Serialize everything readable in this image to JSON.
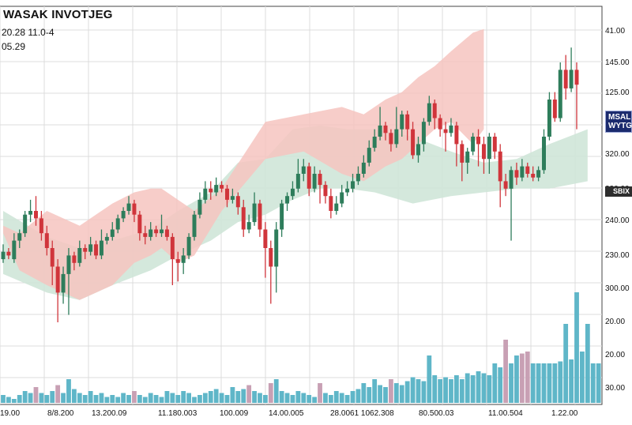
{
  "header": {
    "title": "WASAK INVOTJEG",
    "subtitle_line1": "20.28 11.0-4",
    "subtitle_line2": "05.29"
  },
  "badges": {
    "blue": "MSAL\nWYTG",
    "dark": "SBIX"
  },
  "colors": {
    "up": "#2e7d5b",
    "down": "#d0353b",
    "band_green": "#cfe6d8",
    "band_red": "#f6c4c0",
    "volume_teal": "#5fb6c8",
    "volume_mauve": "#c8a0b4",
    "grid": "#dcdcdc"
  },
  "chart_data": {
    "type": "candlestick",
    "y_axis_labels": [
      "41.00",
      "145.00",
      "125.00",
      "320.00",
      "230.00",
      "240.00",
      "230.00",
      "300.00",
      "20.00",
      "20.00",
      "30.00"
    ],
    "x_axis_labels": [
      "19.00",
      "8/8.200",
      "13.200.09",
      "11.180.003",
      "100.009",
      "14.00.005",
      "28.0061 1062.308",
      "80.500.03",
      "11.00.504",
      "1.22.00"
    ],
    "grid": true,
    "ylim": [
      0,
      100
    ],
    "candles": [
      {
        "o": 37,
        "c": 39,
        "h": 41,
        "l": 36
      },
      {
        "o": 39,
        "c": 38,
        "h": 40,
        "l": 37
      },
      {
        "o": 37,
        "c": 42,
        "h": 44,
        "l": 36
      },
      {
        "o": 42,
        "c": 44,
        "h": 45,
        "l": 40
      },
      {
        "o": 44,
        "c": 49,
        "h": 50,
        "l": 43
      },
      {
        "o": 49,
        "c": 50,
        "h": 53,
        "l": 47
      },
      {
        "o": 50,
        "c": 48,
        "h": 54,
        "l": 46
      },
      {
        "o": 48,
        "c": 44,
        "h": 50,
        "l": 42
      },
      {
        "o": 44,
        "c": 40,
        "h": 46,
        "l": 38
      },
      {
        "o": 40,
        "c": 35,
        "h": 42,
        "l": 30
      },
      {
        "o": 35,
        "c": 28,
        "h": 37,
        "l": 20
      },
      {
        "o": 28,
        "c": 33,
        "h": 35,
        "l": 25
      },
      {
        "o": 33,
        "c": 38,
        "h": 40,
        "l": 22
      },
      {
        "o": 38,
        "c": 36,
        "h": 39,
        "l": 34
      },
      {
        "o": 36,
        "c": 40,
        "h": 42,
        "l": 35
      },
      {
        "o": 40,
        "c": 39,
        "h": 41,
        "l": 37
      },
      {
        "o": 39,
        "c": 41,
        "h": 43,
        "l": 38
      },
      {
        "o": 41,
        "c": 38,
        "h": 42,
        "l": 37
      },
      {
        "o": 38,
        "c": 42,
        "h": 45,
        "l": 37
      },
      {
        "o": 42,
        "c": 43,
        "h": 44,
        "l": 41
      },
      {
        "o": 43,
        "c": 45,
        "h": 47,
        "l": 42
      },
      {
        "o": 45,
        "c": 48,
        "h": 49,
        "l": 44
      },
      {
        "o": 48,
        "c": 50,
        "h": 51,
        "l": 47
      },
      {
        "o": 50,
        "c": 52,
        "h": 54,
        "l": 49
      },
      {
        "o": 52,
        "c": 49,
        "h": 53,
        "l": 47
      },
      {
        "o": 49,
        "c": 44,
        "h": 50,
        "l": 42
      },
      {
        "o": 44,
        "c": 43,
        "h": 46,
        "l": 41
      },
      {
        "o": 43,
        "c": 45,
        "h": 47,
        "l": 42
      },
      {
        "o": 45,
        "c": 44,
        "h": 46,
        "l": 43
      },
      {
        "o": 44,
        "c": 45,
        "h": 49,
        "l": 43
      },
      {
        "o": 45,
        "c": 43,
        "h": 46,
        "l": 42
      },
      {
        "o": 43,
        "c": 37,
        "h": 44,
        "l": 30
      },
      {
        "o": 37,
        "c": 36,
        "h": 39,
        "l": 31
      },
      {
        "o": 36,
        "c": 38,
        "h": 40,
        "l": 33
      },
      {
        "o": 38,
        "c": 43,
        "h": 44,
        "l": 37
      },
      {
        "o": 43,
        "c": 49,
        "h": 50,
        "l": 42
      },
      {
        "o": 49,
        "c": 53,
        "h": 55,
        "l": 48
      },
      {
        "o": 53,
        "c": 56,
        "h": 58,
        "l": 52
      },
      {
        "o": 56,
        "c": 55,
        "h": 58,
        "l": 53
      },
      {
        "o": 55,
        "c": 57,
        "h": 59,
        "l": 54
      },
      {
        "o": 57,
        "c": 56,
        "h": 58,
        "l": 55
      },
      {
        "o": 56,
        "c": 53,
        "h": 57,
        "l": 51
      },
      {
        "o": 53,
        "c": 54,
        "h": 56,
        "l": 52
      },
      {
        "o": 54,
        "c": 51,
        "h": 55,
        "l": 49
      },
      {
        "o": 51,
        "c": 45,
        "h": 53,
        "l": 43
      },
      {
        "o": 45,
        "c": 47,
        "h": 49,
        "l": 44
      },
      {
        "o": 47,
        "c": 52,
        "h": 55,
        "l": 46
      },
      {
        "o": 52,
        "c": 45,
        "h": 53,
        "l": 43
      },
      {
        "o": 45,
        "c": 40,
        "h": 47,
        "l": 32
      },
      {
        "o": 40,
        "c": 35,
        "h": 42,
        "l": 25
      },
      {
        "o": 35,
        "c": 45,
        "h": 47,
        "l": 28
      },
      {
        "o": 45,
        "c": 52,
        "h": 53,
        "l": 43
      },
      {
        "o": 52,
        "c": 54,
        "h": 55,
        "l": 50
      },
      {
        "o": 54,
        "c": 56,
        "h": 58,
        "l": 53
      },
      {
        "o": 56,
        "c": 60,
        "h": 64,
        "l": 55
      },
      {
        "o": 60,
        "c": 62,
        "h": 64,
        "l": 58
      },
      {
        "o": 62,
        "c": 56,
        "h": 63,
        "l": 54
      },
      {
        "o": 56,
        "c": 60,
        "h": 62,
        "l": 55
      },
      {
        "o": 60,
        "c": 57,
        "h": 61,
        "l": 52
      },
      {
        "o": 57,
        "c": 54,
        "h": 58,
        "l": 52
      },
      {
        "o": 54,
        "c": 50,
        "h": 56,
        "l": 48
      },
      {
        "o": 50,
        "c": 52,
        "h": 54,
        "l": 49
      },
      {
        "o": 52,
        "c": 55,
        "h": 57,
        "l": 51
      },
      {
        "o": 55,
        "c": 56,
        "h": 58,
        "l": 54
      },
      {
        "o": 56,
        "c": 58,
        "h": 60,
        "l": 55
      },
      {
        "o": 58,
        "c": 60,
        "h": 62,
        "l": 57
      },
      {
        "o": 60,
        "c": 63,
        "h": 65,
        "l": 59
      },
      {
        "o": 63,
        "c": 67,
        "h": 69,
        "l": 62
      },
      {
        "o": 67,
        "c": 70,
        "h": 72,
        "l": 66
      },
      {
        "o": 70,
        "c": 73,
        "h": 78,
        "l": 69
      },
      {
        "o": 73,
        "c": 71,
        "h": 74,
        "l": 69
      },
      {
        "o": 71,
        "c": 68,
        "h": 72,
        "l": 66
      },
      {
        "o": 68,
        "c": 72,
        "h": 78,
        "l": 67
      },
      {
        "o": 72,
        "c": 76,
        "h": 77,
        "l": 70
      },
      {
        "o": 76,
        "c": 72,
        "h": 77,
        "l": 69
      },
      {
        "o": 72,
        "c": 65,
        "h": 74,
        "l": 64
      },
      {
        "o": 65,
        "c": 68,
        "h": 70,
        "l": 63
      },
      {
        "o": 68,
        "c": 74,
        "h": 75,
        "l": 66
      },
      {
        "o": 74,
        "c": 79,
        "h": 81,
        "l": 73
      },
      {
        "o": 79,
        "c": 75,
        "h": 80,
        "l": 72
      },
      {
        "o": 75,
        "c": 72,
        "h": 76,
        "l": 70
      },
      {
        "o": 72,
        "c": 71,
        "h": 74,
        "l": 66
      },
      {
        "o": 71,
        "c": 73,
        "h": 75,
        "l": 70
      },
      {
        "o": 73,
        "c": 68,
        "h": 74,
        "l": 62
      },
      {
        "o": 68,
        "c": 63,
        "h": 69,
        "l": 58
      },
      {
        "o": 63,
        "c": 66,
        "h": 67,
        "l": 60
      },
      {
        "o": 66,
        "c": 70,
        "h": 71,
        "l": 65
      },
      {
        "o": 70,
        "c": 68,
        "h": 72,
        "l": 62
      },
      {
        "o": 68,
        "c": 64,
        "h": 70,
        "l": 60
      },
      {
        "o": 64,
        "c": 70,
        "h": 71,
        "l": 60
      },
      {
        "o": 70,
        "c": 66,
        "h": 71,
        "l": 64
      },
      {
        "o": 66,
        "c": 58,
        "h": 68,
        "l": 51
      },
      {
        "o": 58,
        "c": 56,
        "h": 60,
        "l": 54
      },
      {
        "o": 56,
        "c": 61,
        "h": 62,
        "l": 42
      },
      {
        "o": 61,
        "c": 59,
        "h": 63,
        "l": 57
      },
      {
        "o": 59,
        "c": 62,
        "h": 64,
        "l": 58
      },
      {
        "o": 62,
        "c": 60,
        "h": 63,
        "l": 59
      },
      {
        "o": 60,
        "c": 59,
        "h": 62,
        "l": 58
      },
      {
        "o": 59,
        "c": 61,
        "h": 62,
        "l": 58
      },
      {
        "o": 61,
        "c": 70,
        "h": 72,
        "l": 60
      },
      {
        "o": 70,
        "c": 80,
        "h": 82,
        "l": 69
      },
      {
        "o": 80,
        "c": 75,
        "h": 82,
        "l": 74
      },
      {
        "o": 75,
        "c": 88,
        "h": 90,
        "l": 74
      },
      {
        "o": 88,
        "c": 83,
        "h": 92,
        "l": 80
      },
      {
        "o": 83,
        "c": 88,
        "h": 94,
        "l": 82
      },
      {
        "o": 88,
        "c": 84,
        "h": 90,
        "l": 72
      }
    ],
    "volumes": [
      {
        "v": 4,
        "t": "t"
      },
      {
        "v": 3,
        "t": "t"
      },
      {
        "v": 2,
        "t": "t"
      },
      {
        "v": 4,
        "t": "t"
      },
      {
        "v": 6,
        "t": "t"
      },
      {
        "v": 5,
        "t": "t"
      },
      {
        "v": 8,
        "t": "m"
      },
      {
        "v": 5,
        "t": "t"
      },
      {
        "v": 4,
        "t": "t"
      },
      {
        "v": 6,
        "t": "t"
      },
      {
        "v": 9,
        "t": "m"
      },
      {
        "v": 5,
        "t": "t"
      },
      {
        "v": 12,
        "t": "t"
      },
      {
        "v": 7,
        "t": "t"
      },
      {
        "v": 5,
        "t": "t"
      },
      {
        "v": 4,
        "t": "t"
      },
      {
        "v": 6,
        "t": "t"
      },
      {
        "v": 4,
        "t": "t"
      },
      {
        "v": 5,
        "t": "t"
      },
      {
        "v": 3,
        "t": "t"
      },
      {
        "v": 4,
        "t": "t"
      },
      {
        "v": 3,
        "t": "t"
      },
      {
        "v": 5,
        "t": "t"
      },
      {
        "v": 4,
        "t": "t"
      },
      {
        "v": 6,
        "t": "m"
      },
      {
        "v": 4,
        "t": "t"
      },
      {
        "v": 3,
        "t": "t"
      },
      {
        "v": 5,
        "t": "t"
      },
      {
        "v": 4,
        "t": "t"
      },
      {
        "v": 3,
        "t": "t"
      },
      {
        "v": 6,
        "t": "t"
      },
      {
        "v": 5,
        "t": "t"
      },
      {
        "v": 4,
        "t": "t"
      },
      {
        "v": 6,
        "t": "t"
      },
      {
        "v": 5,
        "t": "t"
      },
      {
        "v": 3,
        "t": "t"
      },
      {
        "v": 4,
        "t": "t"
      },
      {
        "v": 5,
        "t": "t"
      },
      {
        "v": 6,
        "t": "t"
      },
      {
        "v": 7,
        "t": "t"
      },
      {
        "v": 5,
        "t": "t"
      },
      {
        "v": 4,
        "t": "t"
      },
      {
        "v": 8,
        "t": "t"
      },
      {
        "v": 6,
        "t": "t"
      },
      {
        "v": 7,
        "t": "t"
      },
      {
        "v": 9,
        "t": "m"
      },
      {
        "v": 6,
        "t": "t"
      },
      {
        "v": 5,
        "t": "t"
      },
      {
        "v": 4,
        "t": "t"
      },
      {
        "v": 10,
        "t": "m"
      },
      {
        "v": 12,
        "t": "t"
      },
      {
        "v": 6,
        "t": "t"
      },
      {
        "v": 5,
        "t": "t"
      },
      {
        "v": 4,
        "t": "t"
      },
      {
        "v": 6,
        "t": "t"
      },
      {
        "v": 5,
        "t": "t"
      },
      {
        "v": 4,
        "t": "t"
      },
      {
        "v": 3,
        "t": "t"
      },
      {
        "v": 10,
        "t": "m"
      },
      {
        "v": 5,
        "t": "t"
      },
      {
        "v": 4,
        "t": "t"
      },
      {
        "v": 6,
        "t": "t"
      },
      {
        "v": 5,
        "t": "t"
      },
      {
        "v": 4,
        "t": "t"
      },
      {
        "v": 6,
        "t": "t"
      },
      {
        "v": 7,
        "t": "t"
      },
      {
        "v": 10,
        "t": "t"
      },
      {
        "v": 8,
        "t": "t"
      },
      {
        "v": 12,
        "t": "t"
      },
      {
        "v": 9,
        "t": "t"
      },
      {
        "v": 8,
        "t": "t"
      },
      {
        "v": 12,
        "t": "m"
      },
      {
        "v": 10,
        "t": "t"
      },
      {
        "v": 9,
        "t": "t"
      },
      {
        "v": 11,
        "t": "t"
      },
      {
        "v": 13,
        "t": "t"
      },
      {
        "v": 12,
        "t": "t"
      },
      {
        "v": 11,
        "t": "t"
      },
      {
        "v": 24,
        "t": "t"
      },
      {
        "v": 14,
        "t": "t"
      },
      {
        "v": 12,
        "t": "t"
      },
      {
        "v": 13,
        "t": "t"
      },
      {
        "v": 12,
        "t": "t"
      },
      {
        "v": 14,
        "t": "t"
      },
      {
        "v": 12,
        "t": "t"
      },
      {
        "v": 15,
        "t": "t"
      },
      {
        "v": 14,
        "t": "t"
      },
      {
        "v": 16,
        "t": "t"
      },
      {
        "v": 15,
        "t": "t"
      },
      {
        "v": 14,
        "t": "t"
      },
      {
        "v": 20,
        "t": "t"
      },
      {
        "v": 18,
        "t": "t"
      },
      {
        "v": 32,
        "t": "m"
      },
      {
        "v": 20,
        "t": "t"
      },
      {
        "v": 24,
        "t": "t"
      },
      {
        "v": 25,
        "t": "m"
      },
      {
        "v": 26,
        "t": "m"
      },
      {
        "v": 20,
        "t": "t"
      },
      {
        "v": 20,
        "t": "t"
      },
      {
        "v": 20,
        "t": "t"
      },
      {
        "v": 20,
        "t": "t"
      },
      {
        "v": 20,
        "t": "t"
      },
      {
        "v": 21,
        "t": "t"
      },
      {
        "v": 40,
        "t": "t"
      },
      {
        "v": 22,
        "t": "t"
      },
      {
        "v": 56,
        "t": "t"
      },
      {
        "v": 26,
        "t": "t"
      },
      {
        "v": 40,
        "t": "t"
      },
      {
        "v": 20,
        "t": "t"
      },
      {
        "v": 20,
        "t": "t"
      }
    ],
    "band_green": [
      {
        "x": 0,
        "upper": 50,
        "lower": 33
      },
      {
        "x": 8,
        "upper": 43,
        "lower": 28
      },
      {
        "x": 14,
        "upper": 40,
        "lower": 26
      },
      {
        "x": 20,
        "upper": 42,
        "lower": 30
      },
      {
        "x": 27,
        "upper": 45,
        "lower": 34
      },
      {
        "x": 32,
        "upper": 50,
        "lower": 38
      },
      {
        "x": 38,
        "upper": 55,
        "lower": 42
      },
      {
        "x": 43,
        "upper": 63,
        "lower": 47
      },
      {
        "x": 48,
        "upper": 64,
        "lower": 49
      },
      {
        "x": 53,
        "upper": 72,
        "lower": 53
      },
      {
        "x": 58,
        "upper": 73,
        "lower": 56
      },
      {
        "x": 63,
        "upper": 72,
        "lower": 56
      },
      {
        "x": 68,
        "upper": 72,
        "lower": 55
      },
      {
        "x": 75,
        "upper": 70,
        "lower": 52
      },
      {
        "x": 82,
        "upper": 66,
        "lower": 54
      },
      {
        "x": 88,
        "upper": 63,
        "lower": 55
      },
      {
        "x": 94,
        "upper": 64,
        "lower": 56
      },
      {
        "x": 100,
        "upper": 68,
        "lower": 56
      },
      {
        "x": 107,
        "upper": 72,
        "lower": 58
      }
    ],
    "band_red": [
      {
        "x": 0,
        "upper": 46,
        "lower": 44
      },
      {
        "x": 3,
        "upper": 44,
        "lower": 34
      },
      {
        "x": 8,
        "upper": 50,
        "lower": 30
      },
      {
        "x": 14,
        "upper": 46,
        "lower": 26
      },
      {
        "x": 20,
        "upper": 52,
        "lower": 30
      },
      {
        "x": 24,
        "upper": 55,
        "lower": 36
      },
      {
        "x": 27,
        "upper": 56,
        "lower": 38
      },
      {
        "x": 29,
        "upper": 56,
        "lower": 40
      },
      {
        "x": 32,
        "upper": 53,
        "lower": 36
      },
      {
        "x": 35,
        "upper": 50,
        "lower": 38
      },
      {
        "x": 40,
        "upper": 56,
        "lower": 50
      },
      {
        "x": 48,
        "upper": 74,
        "lower": 64
      },
      {
        "x": 55,
        "upper": 76,
        "lower": 66
      },
      {
        "x": 62,
        "upper": 78,
        "lower": 60
      },
      {
        "x": 66,
        "upper": 76,
        "lower": 58
      },
      {
        "x": 70,
        "upper": 80,
        "lower": 62
      },
      {
        "x": 73,
        "upper": 82,
        "lower": 64
      },
      {
        "x": 76,
        "upper": 86,
        "lower": 68
      },
      {
        "x": 79,
        "upper": 89,
        "lower": 72
      },
      {
        "x": 82,
        "upper": 93,
        "lower": 74
      },
      {
        "x": 86,
        "upper": 98,
        "lower": 68
      },
      {
        "x": 88,
        "upper": 99,
        "lower": 72
      }
    ]
  }
}
